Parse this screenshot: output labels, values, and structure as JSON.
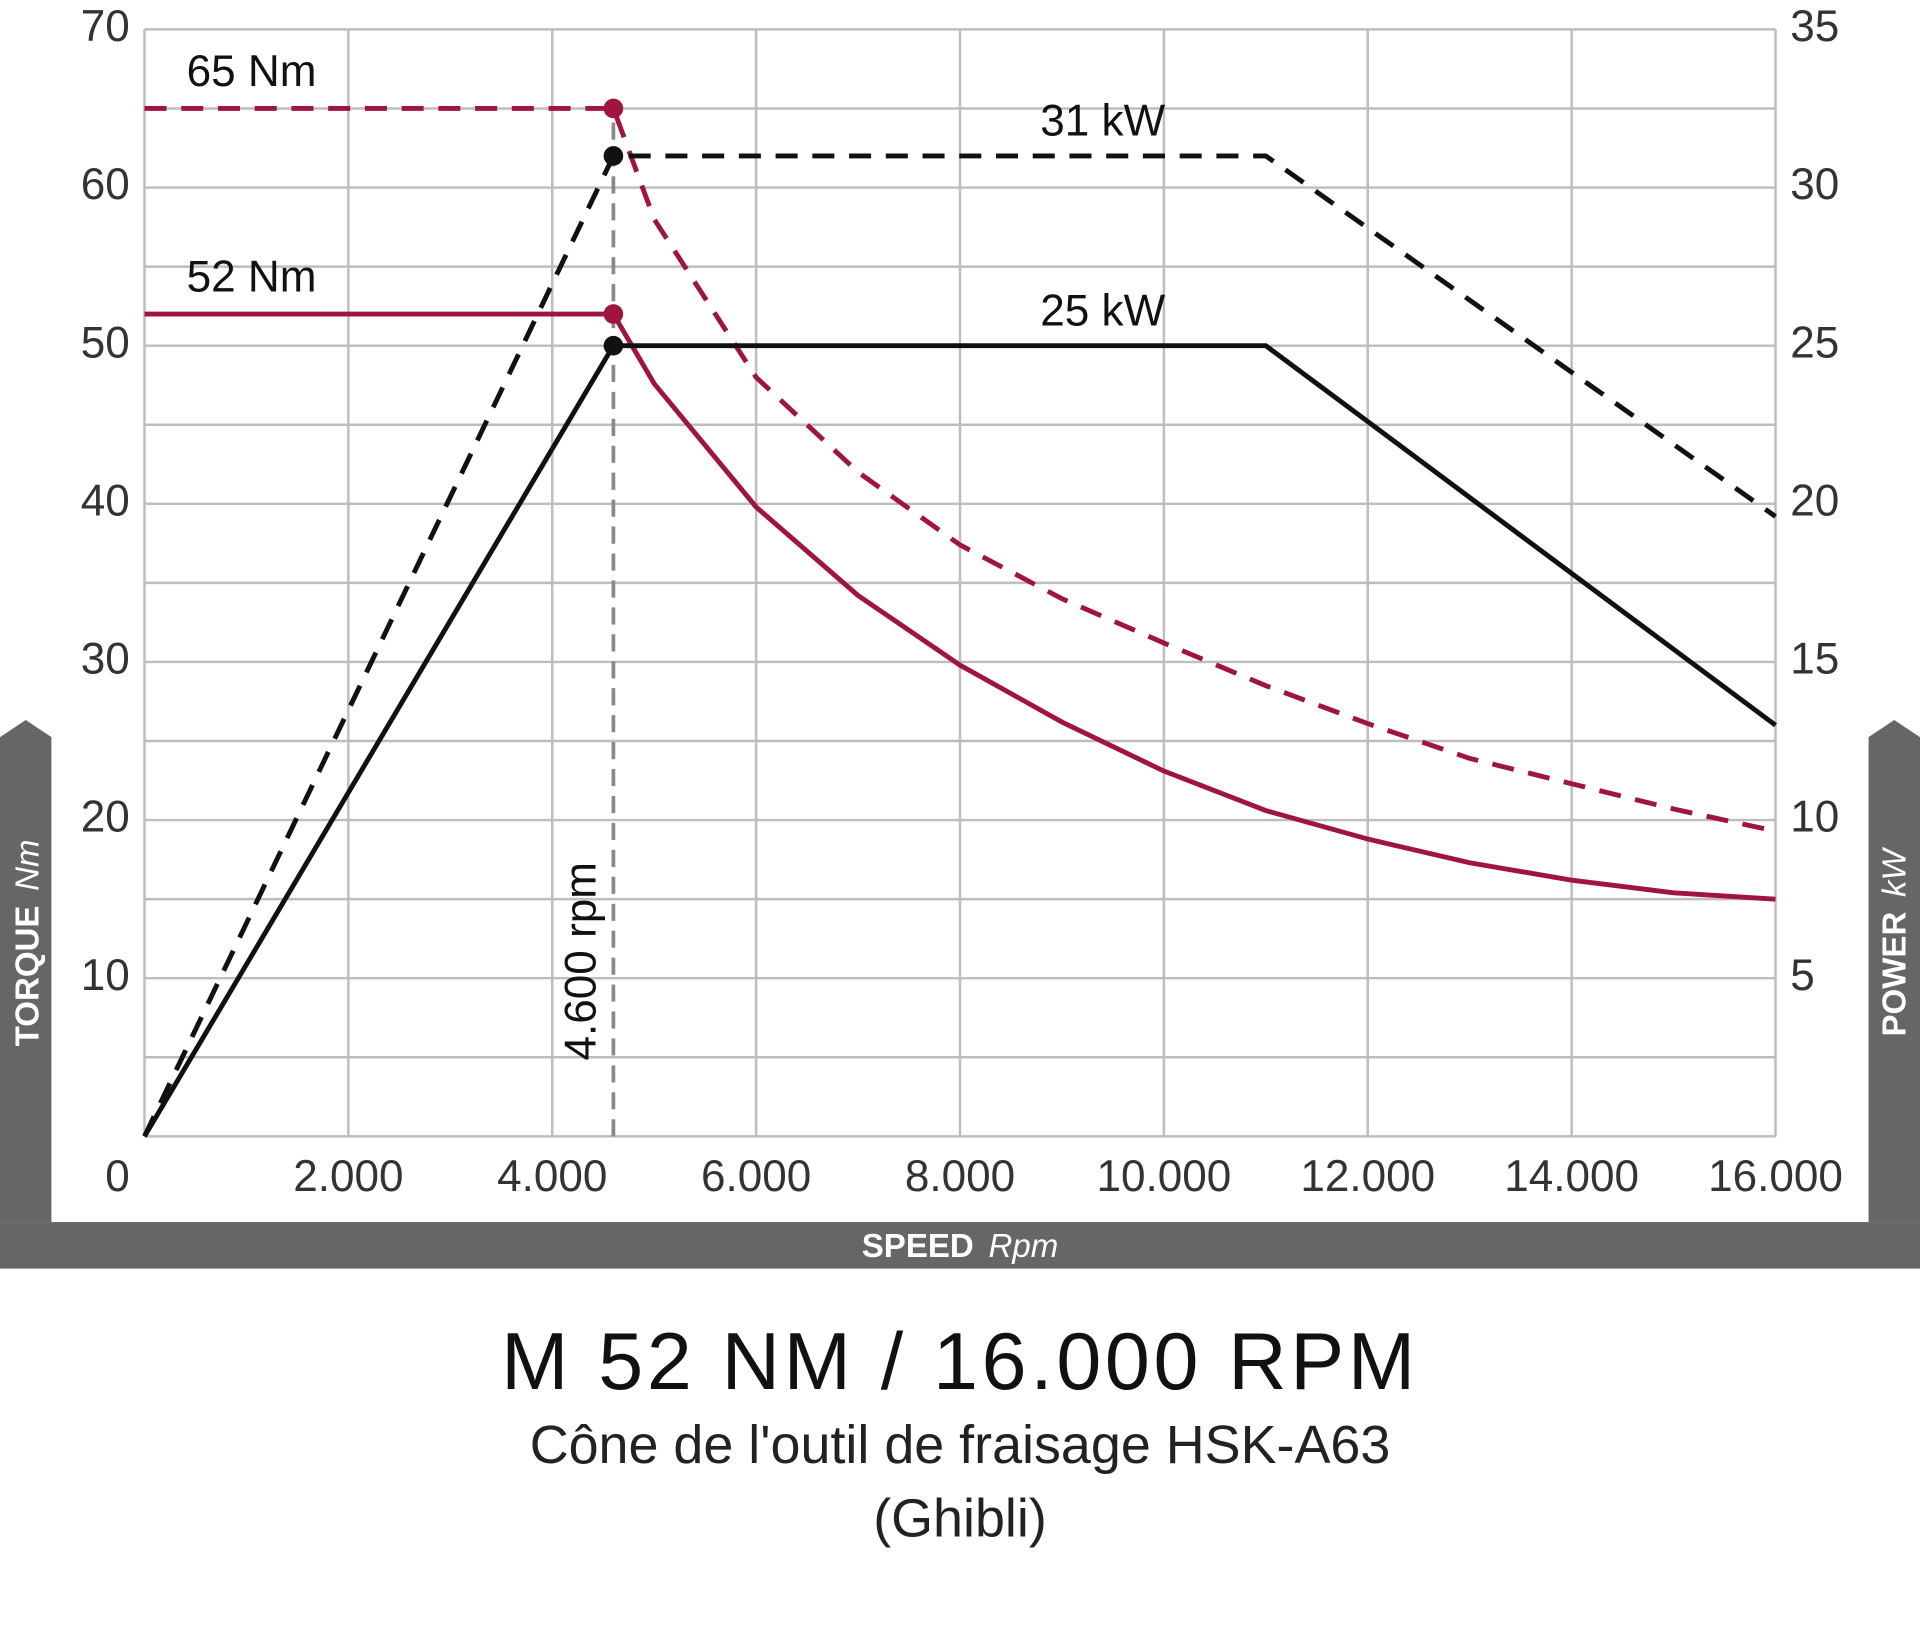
{
  "chart_data": {
    "type": "line",
    "title": "M 52 NM / 16.000 RPM",
    "subtitle": "Cône de l'outil de fraisage HSK-A63",
    "subtitle2": "(Ghibli)",
    "x_label": {
      "bold": "SPEED",
      "unit": "Rpm"
    },
    "y_label": {
      "bold": "TORQUE",
      "unit": "Nm"
    },
    "y2_label": {
      "bold": "POWER",
      "unit": "kW"
    },
    "xlim": [
      0,
      16000
    ],
    "xticks": [
      0,
      {
        "value": 2000,
        "label": "2.000"
      },
      {
        "value": 4000,
        "label": "4.000"
      },
      {
        "value": 6000,
        "label": "6.000"
      },
      {
        "value": 8000,
        "label": "8.000"
      },
      {
        "value": 10000,
        "label": "10.000"
      },
      {
        "value": 12000,
        "label": "12.000"
      },
      {
        "value": 14000,
        "label": "14.000"
      },
      {
        "value": 16000,
        "label": "16.000"
      }
    ],
    "ylim": [
      0,
      70
    ],
    "yticks": [
      10,
      20,
      30,
      40,
      50,
      60,
      70
    ],
    "grid_yticks": [
      0,
      5,
      10,
      15,
      20,
      25,
      30,
      35,
      40,
      45,
      50,
      55,
      60,
      65,
      70
    ],
    "y2lim": [
      0,
      35
    ],
    "y2ticks": [
      5,
      10,
      15,
      20,
      25,
      30,
      35
    ],
    "grid": true,
    "reference_x": {
      "value": 4600,
      "label": "4.600 rpm"
    },
    "series": [
      {
        "name": "65 Nm",
        "color": "#a0153e",
        "dashed": true,
        "axis": "y",
        "x": [
          0,
          4600,
          5000,
          6000,
          7000,
          8000,
          9000,
          10000,
          11000,
          12000,
          13000,
          14000,
          15000,
          16000
        ],
        "values": [
          65,
          65,
          58,
          48,
          42,
          37.4,
          34,
          31.2,
          28.5,
          26.1,
          23.9,
          22.3,
          20.7,
          19.3
        ]
      },
      {
        "name": "52 Nm",
        "color": "#a0153e",
        "dashed": false,
        "axis": "y",
        "x": [
          0,
          4600,
          5000,
          6000,
          7000,
          8000,
          9000,
          10000,
          11000,
          12000,
          13000,
          14000,
          15000,
          16000
        ],
        "values": [
          52,
          52,
          47.6,
          39.8,
          34.2,
          29.8,
          26.2,
          23.1,
          20.6,
          18.8,
          17.3,
          16.2,
          15.4,
          15
        ]
      },
      {
        "name": "31 kW",
        "color": "#111111",
        "dashed": true,
        "axis": "y2",
        "x": [
          0,
          4600,
          11000,
          16000
        ],
        "values": [
          0,
          31,
          31,
          19.6
        ]
      },
      {
        "name": "25 kW",
        "color": "#111111",
        "dashed": false,
        "axis": "y2",
        "x": [
          0,
          4600,
          11000,
          16000
        ],
        "values": [
          0,
          25,
          25,
          13
        ]
      }
    ]
  }
}
